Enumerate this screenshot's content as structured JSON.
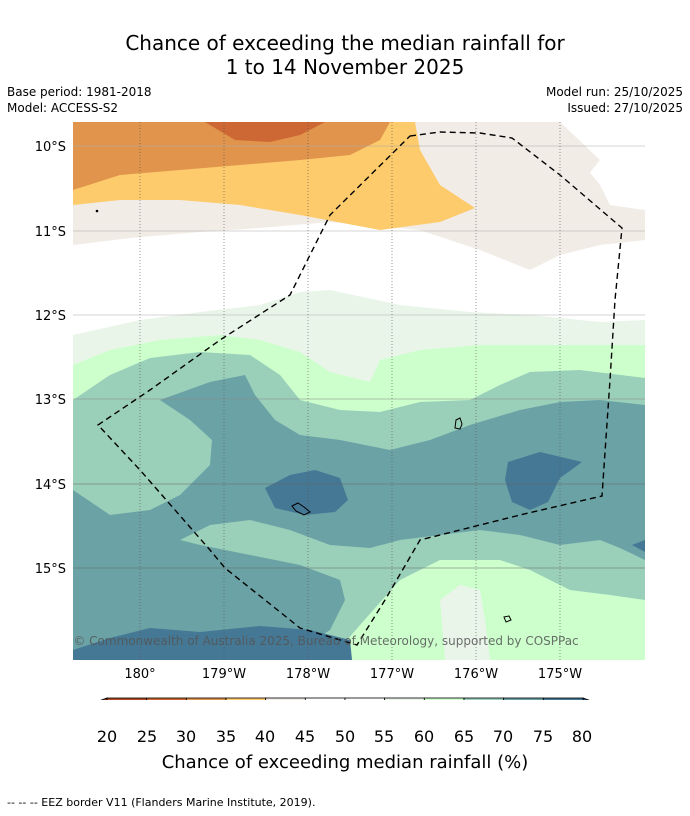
{
  "header": {
    "title_line1": "Chance of exceeding the median rainfall for",
    "title_line2": "1 to 14 November 2025",
    "base_period": "Base period: 1981-2018",
    "model": "Model: ACCESS-S2",
    "model_run": "Model run: 25/10/2025",
    "issued": "Issued: 27/10/2025"
  },
  "map": {
    "lat_labels": [
      "10°S",
      "11°S",
      "12°S",
      "13°S",
      "14°S",
      "15°S"
    ],
    "lon_labels": [
      "180°",
      "179°W",
      "178°W",
      "177°W",
      "176°W",
      "175°W"
    ],
    "attribution": "© Commonwealth of Australia 2025, Bureau of Meteorology, supported by COSPPac"
  },
  "colorbar": {
    "levels": [
      "20",
      "25",
      "30",
      "35",
      "40",
      "45",
      "50",
      "55",
      "60",
      "65",
      "70",
      "75",
      "80"
    ],
    "colors": [
      "#b04a26",
      "#cd6733",
      "#e0944c",
      "#fdcb6b",
      "#f1ece6",
      "#ffffff",
      "#ffffff",
      "#eaf5ea",
      "#ccffcc",
      "#9acfba",
      "#6aa2a5",
      "#447895"
    ],
    "under_color": "#8a3a1e",
    "over_color": "#1f4e8c",
    "title": "Chance of exceeding median rainfall (%)"
  },
  "footer": {
    "eez_note": "--  --  -- EEZ border V11 (Flanders Marine Institute, 2019)."
  }
}
